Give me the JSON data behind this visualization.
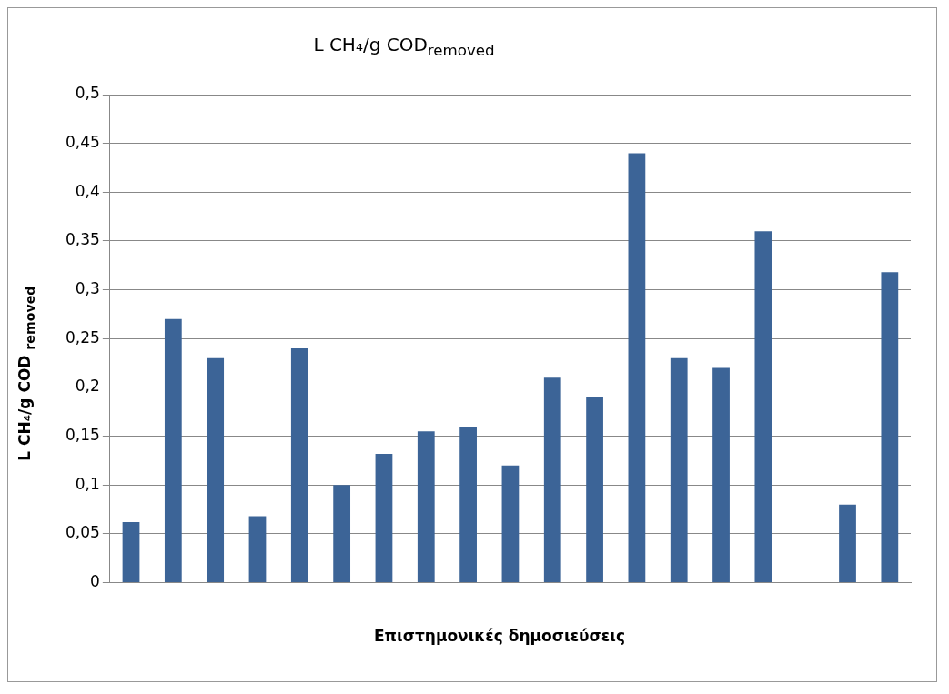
{
  "chart_data": {
    "type": "bar",
    "title": "L CH₄/g COD$_{removed}$",
    "xlabel": "Επιστημονικές δημοσιεύσεις",
    "ylabel": "L CH₄/g COD $_{removed}$",
    "categories": [
      null,
      null,
      null,
      null,
      null,
      null,
      null,
      null,
      null,
      null,
      null,
      null,
      null,
      null,
      null,
      null,
      null,
      null,
      null
    ],
    "values": [
      0.062,
      0.27,
      0.23,
      0.068,
      0.24,
      0.1,
      0.132,
      0.155,
      0.16,
      0.12,
      0.21,
      0.19,
      0.44,
      0.23,
      0.22,
      0.36,
      null,
      0.08,
      0.318
    ],
    "color": "#3c6497",
    "ylim": [
      0,
      0.5
    ],
    "yticks": [
      0,
      {
        "value": 0.05,
        "label": "0,05"
      },
      {
        "value": 0.1,
        "label": "0,1"
      },
      {
        "value": 0.15,
        "label": "0,15"
      },
      {
        "value": 0.2,
        "label": "0,2"
      },
      {
        "value": 0.25,
        "label": "0,25"
      },
      {
        "value": 0.3,
        "label": "0,3"
      },
      {
        "value": 0.35,
        "label": "0,35"
      },
      {
        "value": 0.4,
        "label": "0,4"
      },
      {
        "value": 0.45,
        "label": "0,45"
      },
      {
        "value": 0.5,
        "label": "0,5"
      }
    ],
    "grid": "y"
  }
}
